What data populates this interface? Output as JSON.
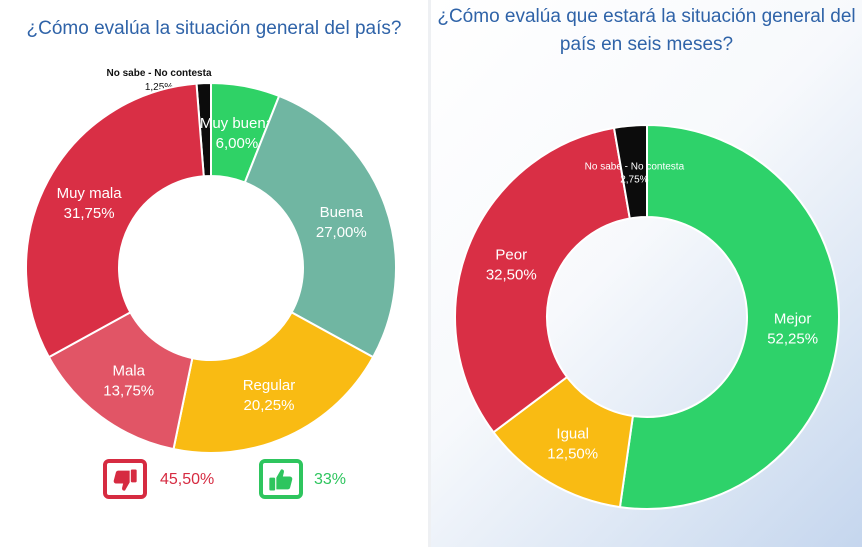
{
  "colors": {
    "muy_mala": "#d92f45",
    "mala": "#e15566",
    "regular": "#f9bb13",
    "buena": "#70b6a2",
    "muy_buena": "#2fd266",
    "ns_nc": "#0c0c0c",
    "mejor": "#2ed26a",
    "peor": "#d92f45",
    "igual": "#f9bb13",
    "negative": "#d62b41",
    "positive": "#2ec55e"
  },
  "chart_data": [
    {
      "type": "pie",
      "title": "¿Cómo evalúa la situación general del país?",
      "hole": true,
      "slices": [
        {
          "label": "No sabe - No contesta",
          "value_label": "1,25%",
          "value": 1.25,
          "color": "#0c0c0c"
        },
        {
          "label": "Muy buena",
          "value_label": "6,00%",
          "value": 6.0,
          "color": "#2fd266"
        },
        {
          "label": "Buena",
          "value_label": "27,00%",
          "value": 27.0,
          "color": "#70b6a2"
        },
        {
          "label": "Regular",
          "value_label": "20,25%",
          "value": 20.25,
          "color": "#f9bb13"
        },
        {
          "label": "Mala",
          "value_label": "13,75%",
          "value": 13.75,
          "color": "#e15566"
        },
        {
          "label": "Muy mala",
          "value_label": "31,75%",
          "value": 31.75,
          "color": "#d92f45"
        }
      ],
      "summary": {
        "negative": {
          "icon": "thumbs-down-icon",
          "value": "45,50%"
        },
        "positive": {
          "icon": "thumbs-up-icon",
          "value": "33%"
        }
      }
    },
    {
      "type": "pie",
      "title": "¿Cómo evalúa que estará la situación general del país en seis meses?",
      "hole": true,
      "slices": [
        {
          "label": "Mejor",
          "value_label": "52,25%",
          "value": 52.25,
          "color": "#2ed26a"
        },
        {
          "label": "Igual",
          "value_label": "12,50%",
          "value": 12.5,
          "color": "#f9bb13"
        },
        {
          "label": "Peor",
          "value_label": "32,50%",
          "value": 32.5,
          "color": "#d92f45"
        },
        {
          "label": "No sabe - No contesta",
          "value_label": "2,75%",
          "value": 2.75,
          "color": "#0c0c0c"
        }
      ]
    }
  ]
}
